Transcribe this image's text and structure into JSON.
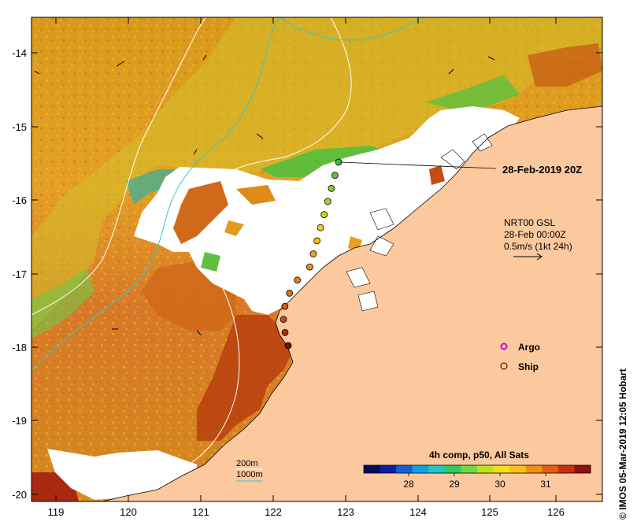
{
  "map": {
    "lat_range": [
      -20.1,
      -13.5
    ],
    "lon_range": [
      118.7,
      126.7
    ],
    "lat_ticks": [
      "-14",
      "-15",
      "-16",
      "-17",
      "-18",
      "-19",
      "-20"
    ],
    "lon_ticks": [
      "119",
      "120",
      "121",
      "122",
      "123",
      "124",
      "125",
      "126"
    ],
    "land_color": "#fcc99e"
  },
  "ship_track": {
    "end_label": "28-Feb-2019 20Z",
    "stops_count": 15
  },
  "current_info": {
    "line1": "NRT00 GSL",
    "line2": "28-Feb 00:00Z",
    "line3": "0.5m/s (1kt 24h)"
  },
  "legend": {
    "argo_label": "Argo",
    "ship_label": "Ship",
    "argo_color": "#cc00cc"
  },
  "bathymetry": {
    "contour_200_label": "200m",
    "contour_1000_label": "1000m",
    "color_200": "#ffffff",
    "color_1000": "#32c8c8"
  },
  "colorbar": {
    "title": "4h comp, p50, All Sats",
    "ticks": [
      "28",
      "29",
      "30",
      "31"
    ],
    "palette": [
      "#08085a",
      "#0a1fa0",
      "#1260d8",
      "#10a0e8",
      "#20c8c0",
      "#30c860",
      "#70d840",
      "#c0e020",
      "#f0e020",
      "#f8c010",
      "#f09010",
      "#e06010",
      "#c83010",
      "#901010"
    ]
  },
  "credit": {
    "text": "© IMOS 05-Mar-2019 12:05 Hobart"
  }
}
